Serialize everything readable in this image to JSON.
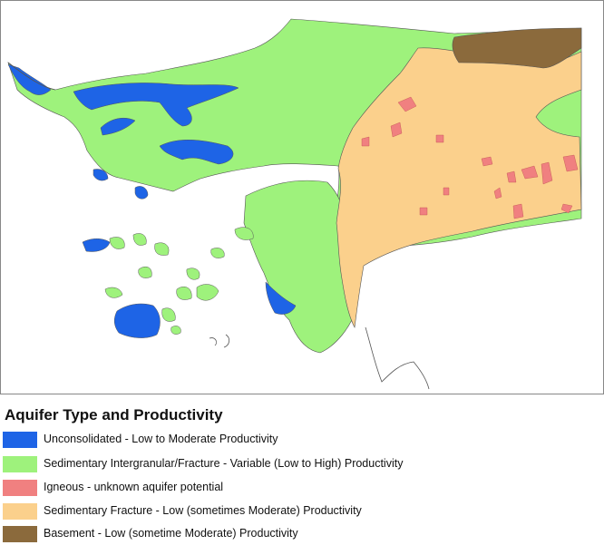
{
  "legend": {
    "title": "Aquifer Type and Productivity",
    "items": [
      {
        "label": "Unconsolidated - Low to Moderate Productivity",
        "color": "#1e64e6"
      },
      {
        "label": "Sedimentary Intergranular/Fracture - Variable (Low to High) Productivity",
        "color": "#9ef27c"
      },
      {
        "label": "Igneous - unknown aquifer potential",
        "color": "#f08080"
      },
      {
        "label": "Sedimentary Fracture - Low (sometimes Moderate) Productivity",
        "color": "#fbd08c"
      },
      {
        "label": "Basement - Low (sometime Moderate) Productivity",
        "color": "#8b6a3c"
      }
    ]
  },
  "map": {
    "colors": {
      "unconsolidated": "#1e64e6",
      "sedimentary_intergranular": "#9ef27c",
      "igneous": "#f08080",
      "sedimentary_fracture": "#fbd08c",
      "basement": "#8b6a3c",
      "outline": "#555555",
      "frame": "#888888"
    }
  }
}
